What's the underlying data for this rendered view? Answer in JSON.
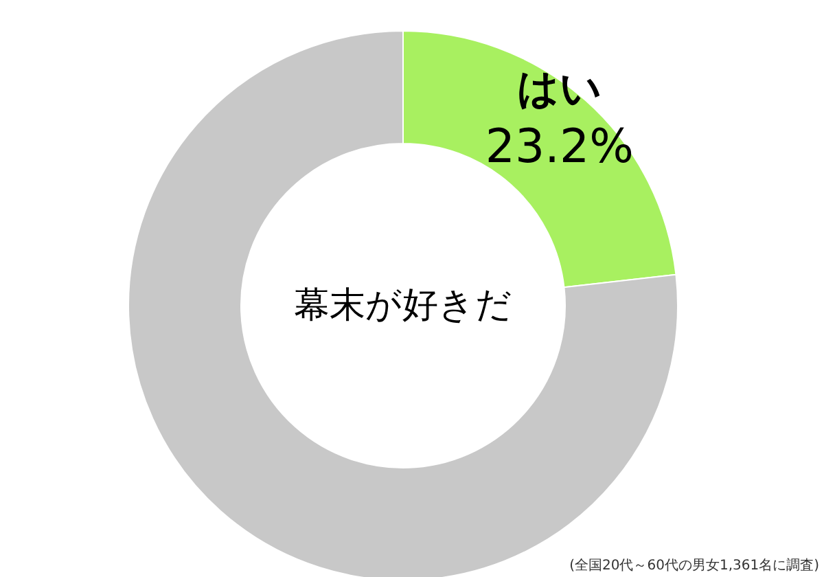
{
  "chart_data": {
    "type": "donut",
    "title": "幕末が好きだ",
    "categories": [
      "はい",
      null
    ],
    "values": [
      23.2,
      76.8
    ],
    "colors": [
      "#a8f060",
      "#c8c8c8"
    ],
    "value_labels": [
      "23.2%",
      null
    ],
    "annotations": [
      "(全国20代～60代の男女1,361名に調査)"
    ]
  }
}
